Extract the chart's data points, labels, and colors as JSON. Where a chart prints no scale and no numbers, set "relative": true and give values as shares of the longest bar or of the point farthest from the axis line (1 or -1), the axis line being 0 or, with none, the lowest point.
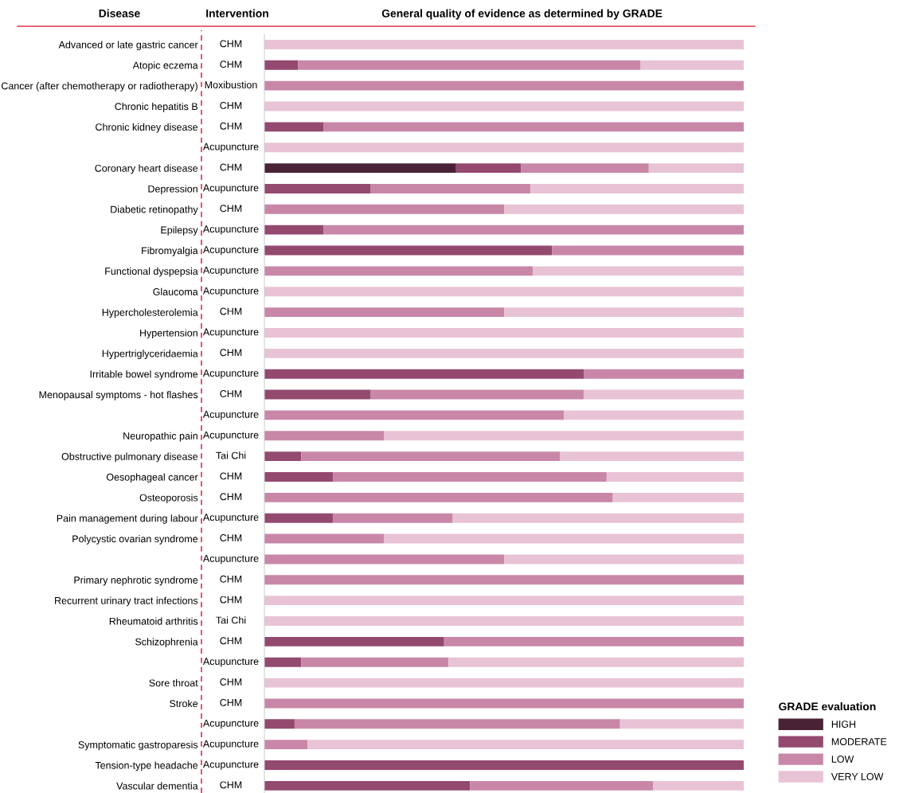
{
  "chart_data": {
    "type": "bar",
    "orientation": "horizontal",
    "stacked": true,
    "relative": true,
    "title": "General quality of evidence as determined by GRADE",
    "annotations": [
      "Disease",
      "Intervention"
    ],
    "legend_title": "GRADE evaluation",
    "legend": "bottom right",
    "categories": [
      "Advanced or late gastric cancer",
      "Atopic eczema",
      "Cancer (after chemotherapy or radiotherapy)",
      "Chronic hepatitis B",
      "Chronic kidney disease",
      null,
      "Coronary heart disease",
      "Depression",
      "Diabetic retinopathy",
      "Epilepsy",
      "Fibromyalgia",
      "Functional dyspepsia",
      "Glaucoma",
      "Hypercholesterolemia",
      "Hypertension",
      "Hypertriglyceridaemia",
      "Irritable bowel syndrome",
      "Menopausal symptoms - hot flashes",
      null,
      "Neuropathic pain",
      "Obstructive pulmonary disease",
      "Oesophageal cancer",
      "Osteoporosis",
      "Pain management during labour",
      "Polycystic ovarian syndrome",
      null,
      "Primary nephrotic syndrome",
      "Recurrent urinary tract infections",
      "Rheumatoid arthritis",
      "Schizophrenia",
      null,
      "Sore throat",
      "Stroke",
      null,
      "Symptomatic gastroparesis",
      "Tension-type headache",
      "Vascular dementia"
    ],
    "y2_categories": [
      "CHM",
      "CHM",
      "Moxibustion",
      "CHM",
      "CHM",
      "Acupuncture",
      "CHM",
      "Acupuncture",
      "CHM",
      "Acupuncture",
      "Acupuncture",
      "Acupuncture",
      "Acupuncture",
      "CHM",
      "Acupuncture",
      "CHM",
      "Acupuncture",
      "CHM",
      "Acupuncture",
      "Acupuncture",
      "Tai Chi",
      "CHM",
      "CHM",
      "Acupuncture",
      "CHM",
      "Acupuncture",
      "CHM",
      "CHM",
      "Tai Chi",
      "CHM",
      "Acupuncture",
      "CHM",
      "CHM",
      "Acupuncture",
      "Acupuncture",
      "Acupuncture",
      "CHM"
    ],
    "series": [
      {
        "name": "HIGH",
        "color": "#4a2236",
        "values": [
          0,
          0,
          0,
          0,
          0,
          0,
          0.4,
          0,
          0,
          0,
          0,
          0,
          0,
          0,
          0,
          0,
          0,
          0,
          0,
          0,
          0,
          0,
          0,
          0,
          0,
          0,
          0,
          0,
          0,
          0,
          0,
          0,
          0,
          0,
          0,
          0,
          0
        ]
      },
      {
        "name": "MODERATE",
        "color": "#94496f",
        "values": [
          0,
          0.07,
          0,
          0,
          0.123,
          0,
          0.135,
          0.222,
          0,
          0.123,
          0.6,
          0,
          0,
          0,
          0,
          0,
          0.667,
          0.222,
          0,
          0,
          0.077,
          0.143,
          0,
          0.143,
          0,
          0,
          0,
          0,
          0,
          0.375,
          0.077,
          0,
          0,
          0.063,
          0,
          1,
          0.429
        ]
      },
      {
        "name": "LOW",
        "color": "#c987a8",
        "values": [
          0,
          0.715,
          1,
          0,
          0.877,
          0,
          0.267,
          0.333,
          0.5,
          0.877,
          0.4,
          0.56,
          0,
          0.5,
          0,
          0,
          0.333,
          0.444,
          0.625,
          0.25,
          0.54,
          0.571,
          0.727,
          0.25,
          0.25,
          0.5,
          1,
          0,
          0,
          0.625,
          0.307,
          0,
          1,
          0.679,
          0.09,
          0,
          0.382
        ]
      },
      {
        "name": "VERY LOW",
        "color": "#e8c3d5",
        "values": [
          1,
          0.215,
          0,
          1,
          0,
          1,
          0.198,
          0.445,
          0.5,
          0,
          0,
          0.44,
          1,
          0.5,
          1,
          1,
          0,
          0.334,
          0.375,
          0.75,
          0.383,
          0.286,
          0.273,
          0.607,
          0.75,
          0.5,
          0,
          1,
          1,
          0,
          0.616,
          1,
          0,
          0.258,
          0.91,
          0,
          0.189
        ]
      }
    ]
  }
}
